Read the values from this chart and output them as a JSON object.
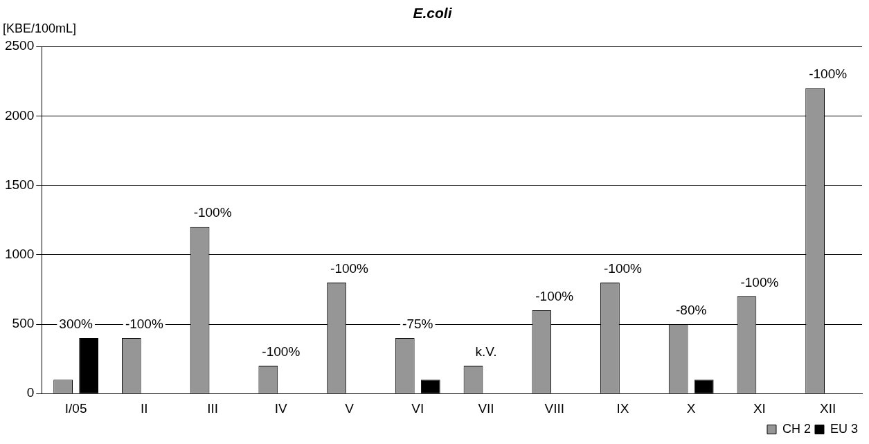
{
  "chart_data": {
    "type": "bar",
    "title": "E.coli",
    "ylabel": "[KBE/100mL]",
    "categories": [
      "I/05",
      "II",
      "III",
      "IV",
      "V",
      "VI",
      "VII",
      "VIII",
      "IX",
      "X",
      "XI",
      "XII"
    ],
    "series": [
      {
        "name": "CH 2",
        "color": "#969696",
        "values": [
          100,
          400,
          1200,
          200,
          800,
          400,
          200,
          600,
          800,
          500,
          700,
          2200
        ]
      },
      {
        "name": "EU 3",
        "color": "#000000",
        "values": [
          400,
          0,
          0,
          0,
          0,
          100,
          0,
          0,
          0,
          100,
          0,
          0
        ]
      }
    ],
    "ylim": [
      0,
      2500
    ],
    "yticks": [
      0,
      500,
      1000,
      1500,
      2000,
      2500
    ],
    "grid": "y",
    "legend": "bottom right",
    "annotations": [
      "300%",
      "-100%",
      "-100%",
      "-100%",
      "-100%",
      "-75%",
      "k.V.",
      "-100%",
      "-100%",
      "-80%",
      "-100%",
      "-100%"
    ]
  }
}
